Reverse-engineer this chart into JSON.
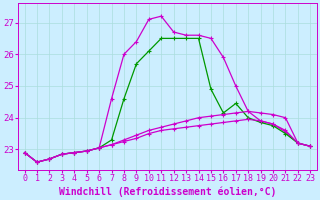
{
  "xlabel": "Windchill (Refroidissement éolien,°C)",
  "background_color": "#cceeff",
  "line_color": "#cc00cc",
  "line_color2": "#009900",
  "x": [
    0,
    1,
    2,
    3,
    4,
    5,
    6,
    7,
    8,
    9,
    10,
    11,
    12,
    13,
    14,
    15,
    16,
    17,
    18,
    19,
    20,
    21,
    22,
    23
  ],
  "line_main": [
    22.9,
    22.6,
    22.7,
    22.85,
    22.9,
    22.95,
    23.05,
    24.6,
    26.0,
    26.4,
    27.1,
    27.2,
    26.7,
    26.6,
    26.6,
    26.5,
    25.9,
    25.0,
    24.2,
    23.9,
    23.8,
    23.55,
    23.2,
    23.1
  ],
  "line_green": [
    22.9,
    22.6,
    22.7,
    22.85,
    22.9,
    22.95,
    23.05,
    23.3,
    24.6,
    25.7,
    26.1,
    26.5,
    26.5,
    26.5,
    26.5,
    24.9,
    24.15,
    24.45,
    24.0,
    23.85,
    23.75,
    23.5,
    23.2,
    23.1
  ],
  "line_flat1": [
    22.9,
    22.6,
    22.7,
    22.85,
    22.9,
    22.95,
    23.05,
    23.15,
    23.3,
    23.45,
    23.6,
    23.7,
    23.8,
    23.9,
    24.0,
    24.05,
    24.1,
    24.15,
    24.2,
    24.15,
    24.1,
    24.0,
    23.2,
    23.1
  ],
  "line_flat2": [
    22.9,
    22.6,
    22.7,
    22.85,
    22.9,
    22.95,
    23.05,
    23.15,
    23.25,
    23.35,
    23.5,
    23.6,
    23.65,
    23.7,
    23.75,
    23.8,
    23.85,
    23.9,
    23.95,
    23.9,
    23.8,
    23.6,
    23.2,
    23.1
  ],
  "xlim": [
    -0.5,
    23.5
  ],
  "ylim": [
    22.35,
    27.6
  ],
  "yticks": [
    23,
    24,
    25,
    26,
    27
  ],
  "xticks": [
    0,
    1,
    2,
    3,
    4,
    5,
    6,
    7,
    8,
    9,
    10,
    11,
    12,
    13,
    14,
    15,
    16,
    17,
    18,
    19,
    20,
    21,
    22,
    23
  ],
  "grid_color": "#aadddd",
  "markersize": 3,
  "linewidth": 0.9,
  "xlabel_fontsize": 7,
  "tick_fontsize": 6.5
}
